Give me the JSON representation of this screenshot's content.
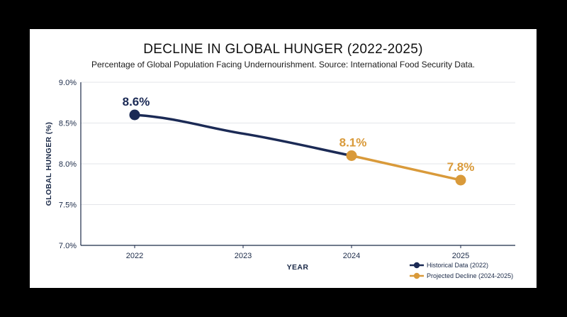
{
  "chart_data": {
    "type": "line",
    "title": "DECLINE IN GLOBAL HUNGER (2022-2025)",
    "subtitle": "Percentage of Global Population Facing Undernourishment. Source: International Food Security Data.",
    "xlabel": "YEAR",
    "ylabel": "GLOBAL HUNGER (%)",
    "categories": [
      "2022",
      "2023",
      "2024",
      "2025"
    ],
    "ylim": [
      7.0,
      9.0
    ],
    "yticks": [
      {
        "value": 7.0,
        "label": "7.0%"
      },
      {
        "value": 7.5,
        "label": "7.5%"
      },
      {
        "value": 8.0,
        "label": "8.0%"
      },
      {
        "value": 8.5,
        "label": "8.5%"
      },
      {
        "value": 9.0,
        "label": "9.0%"
      }
    ],
    "grid": true,
    "legend_position": "bottom-right",
    "series": [
      {
        "name": "Historical Data (2022)",
        "color": "#1b2a55",
        "x": [
          "2022",
          "2023",
          "2024"
        ],
        "values": [
          8.6,
          8.37,
          8.1
        ]
      },
      {
        "name": "Projected Decline (2024-2025)",
        "color": "#d99a3a",
        "x": [
          "2024",
          "2025"
        ],
        "values": [
          8.1,
          7.8
        ]
      }
    ],
    "data_labels": [
      {
        "x": "2022",
        "value": 8.6,
        "text": "8.6%",
        "color": "#1b2a55"
      },
      {
        "x": "2024",
        "value": 8.1,
        "text": "8.1%",
        "color": "#d99a3a"
      },
      {
        "x": "2025",
        "value": 7.8,
        "text": "7.8%",
        "color": "#d99a3a"
      }
    ]
  }
}
